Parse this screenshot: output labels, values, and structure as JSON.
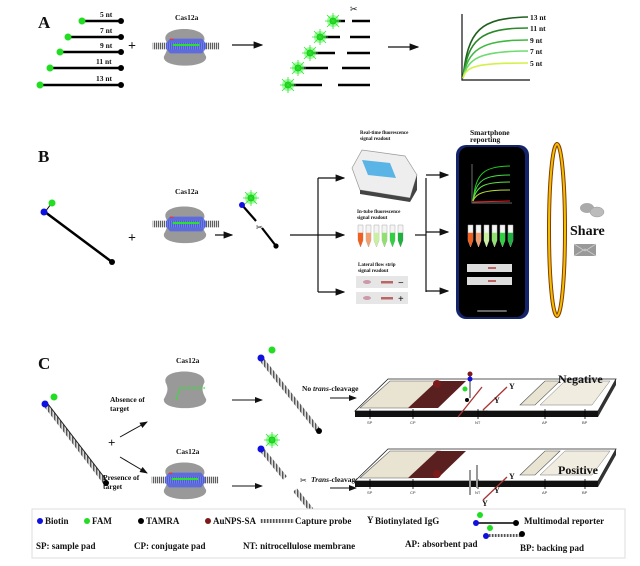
{
  "panel_a": {
    "label": "A",
    "reporter_lengths": [
      "5 nt",
      "7 nt",
      "9 nt",
      "11 nt",
      "13 nt"
    ],
    "enzyme": "Cas12a",
    "curve_labels": [
      "13 nt",
      "11 nt",
      "9 nt",
      "7 nt",
      "5 nt"
    ]
  },
  "panel_b": {
    "label": "B",
    "enzyme": "Cas12a",
    "realtime": {
      "line1": "Real-time fluorescence",
      "line2": "signal readout"
    },
    "intube": {
      "line1": "In-tube fluorescence",
      "line2": "signal readout"
    },
    "lateral": {
      "line1": "Lateral flow strip",
      "line2": "signal readout",
      "neg_sign": "−",
      "pos_sign": "+"
    },
    "smartphone": {
      "line1": "Smartphone",
      "line2": "reporting"
    },
    "share": "Share"
  },
  "panel_c": {
    "label": "C",
    "enzyme": "Cas12a",
    "absence": {
      "line1": "Absence of",
      "line2": "target"
    },
    "presence": {
      "line1": "Presence of",
      "line2": "target"
    },
    "no_cleavage": {
      "prefix": "No ",
      "italic": "trans",
      "suffix": "-cleavage"
    },
    "cleavage": {
      "italic": "Trans",
      "suffix": "-cleavage"
    },
    "negative": "Negative",
    "positive": "Positive",
    "strip_labels": [
      "SP",
      "CP",
      "NT",
      "AP",
      "BP"
    ]
  },
  "legend": {
    "biotin": "Biotin",
    "fam": "FAM",
    "tamra": "TAMRA",
    "aunps": "AuNPS-SA",
    "capture": "Capture probe",
    "igg": "Biotinylated IgG",
    "reporter": "Multimodal reporter",
    "sp": "SP: sample pad",
    "cp": "CP: conjugate pad",
    "nt": "NT: nitrocellulose membrane",
    "ap": "AP: absorbent pad",
    "bp": "BP: backing pad"
  },
  "colors": {
    "biotin": "#1010e0",
    "fam": "#22dd22",
    "tamra": "#000000",
    "aunps": "#7a1a1a",
    "cas12a": "#999999",
    "conjugate_pad": "#5a1f1f",
    "phone_frame": "#14246a"
  }
}
